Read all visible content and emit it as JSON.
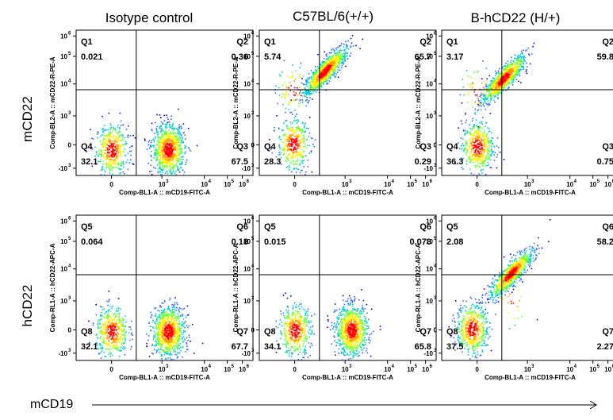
{
  "column_titles": [
    "Isotype control",
    "C57BL/6(+/+)",
    "B-hCD22 (H/+)"
  ],
  "row_labels": [
    "mCD22",
    "hCD22"
  ],
  "footer_label": "mCD19",
  "x_ticks": [
    "0",
    "10",
    "10",
    "10",
    "10"
  ],
  "x_tick_exps": [
    "",
    "3",
    "4",
    "5",
    "6"
  ],
  "y_ticks": [
    "-10",
    "0",
    "10",
    "10",
    "10",
    "10"
  ],
  "y_tick_exps": [
    "3",
    "",
    "3",
    "4",
    "5",
    "6"
  ],
  "chart_data": [
    {
      "type": "scatter",
      "panel": "row1-col1",
      "xlabel": "Comp-BL1-A :: mCD19-FITC-A",
      "ylabel": "Comp-BL2-A :: mCD22-R-PE-A",
      "quadrants": [
        {
          "name": "Q1",
          "value": "0.021"
        },
        {
          "name": "Q2",
          "value": "0.36"
        },
        {
          "name": "Q3",
          "value": "67.5"
        },
        {
          "name": "Q4",
          "value": "32.1"
        }
      ],
      "populations": [
        {
          "x": 0.2,
          "y": 0.18,
          "share": 0.33
        },
        {
          "x": 0.52,
          "y": 0.18,
          "share": 0.67
        }
      ]
    },
    {
      "type": "scatter",
      "panel": "row1-col2",
      "xlabel": "Comp-BL1-A :: mCD19-FITC-A",
      "ylabel": "Comp-BL2-A :: mCD22-R-PE-A",
      "quadrants": [
        {
          "name": "Q1",
          "value": "5.74"
        },
        {
          "name": "Q2",
          "value": "65.7"
        },
        {
          "name": "Q3",
          "value": "0.29"
        },
        {
          "name": "Q4",
          "value": "28.3"
        }
      ],
      "populations": [
        {
          "x": 0.37,
          "y": 0.72,
          "share": 0.66
        },
        {
          "x": 0.19,
          "y": 0.22,
          "share": 0.28
        },
        {
          "x": 0.19,
          "y": 0.6,
          "share": 0.06
        }
      ]
    },
    {
      "type": "scatter",
      "panel": "row1-col3",
      "xlabel": "Comp-BL1-A :: mCD19-FITC-A",
      "ylabel": "Comp-BL2-A :: mCD22-R-PE-A",
      "quadrants": [
        {
          "name": "Q1",
          "value": "3.17"
        },
        {
          "name": "Q2",
          "value": "59.8"
        },
        {
          "name": "Q3",
          "value": "0.75"
        },
        {
          "name": "Q4",
          "value": "36.3"
        }
      ],
      "populations": [
        {
          "x": 0.35,
          "y": 0.67,
          "share": 0.6
        },
        {
          "x": 0.2,
          "y": 0.2,
          "share": 0.36
        },
        {
          "x": 0.2,
          "y": 0.6,
          "share": 0.04
        }
      ]
    },
    {
      "type": "scatter",
      "panel": "row2-col1",
      "xlabel": "Comp-BL1-A :: mCD19-FITC-A",
      "ylabel": "Comp-RL1-A :: hCD22-APC-A",
      "quadrants": [
        {
          "name": "Q5",
          "value": "0.064"
        },
        {
          "name": "Q6",
          "value": "0.18"
        },
        {
          "name": "Q7",
          "value": "67.7"
        },
        {
          "name": "Q8",
          "value": "32.1"
        }
      ],
      "populations": [
        {
          "x": 0.2,
          "y": 0.2,
          "share": 0.33
        },
        {
          "x": 0.52,
          "y": 0.2,
          "share": 0.67
        }
      ]
    },
    {
      "type": "scatter",
      "panel": "row2-col2",
      "xlabel": "Comp-BL1-A :: mCD19-FITC-A",
      "ylabel": "Comp-RL1-A :: hCD22-APC-A",
      "quadrants": [
        {
          "name": "Q5",
          "value": "0.015"
        },
        {
          "name": "Q6",
          "value": "0.078"
        },
        {
          "name": "Q7",
          "value": "65.8"
        },
        {
          "name": "Q8",
          "value": "34.1"
        }
      ],
      "populations": [
        {
          "x": 0.2,
          "y": 0.21,
          "share": 0.34
        },
        {
          "x": 0.52,
          "y": 0.21,
          "share": 0.66
        }
      ]
    },
    {
      "type": "scatter",
      "panel": "row2-col3",
      "xlabel": "Comp-BL1-A :: mCD19-FITC-A",
      "ylabel": "Comp-RL1-A :: hCD22-APC-A",
      "quadrants": [
        {
          "name": "Q5",
          "value": "2.08"
        },
        {
          "name": "Q6",
          "value": "58.2"
        },
        {
          "name": "Q7",
          "value": "2.27"
        },
        {
          "name": "Q8",
          "value": "37.5"
        }
      ],
      "populations": [
        {
          "x": 0.39,
          "y": 0.6,
          "share": 0.58
        },
        {
          "x": 0.17,
          "y": 0.22,
          "share": 0.38
        },
        {
          "x": 0.4,
          "y": 0.4,
          "share": 0.02
        }
      ]
    }
  ]
}
